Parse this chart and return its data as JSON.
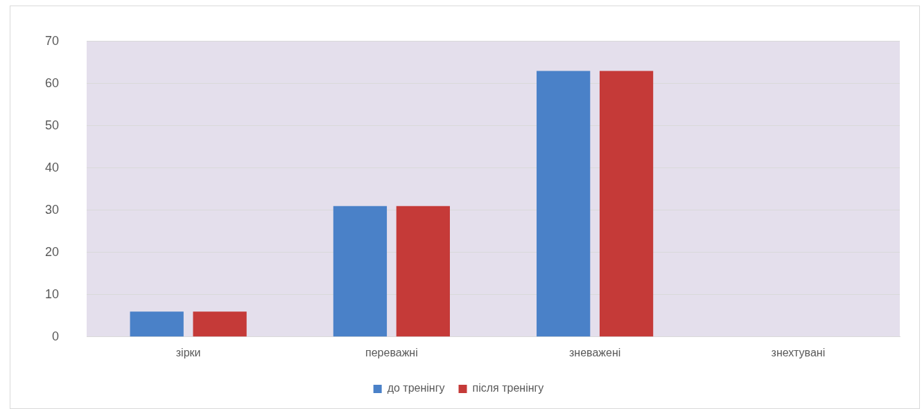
{
  "chart_data": {
    "type": "bar",
    "categories": [
      "зірки",
      "переважні",
      "зневажені",
      "знехтувані"
    ],
    "series": [
      {
        "name": "до тренінгу",
        "color": "#4a81c8",
        "values": [
          6,
          31,
          63,
          0
        ]
      },
      {
        "name": "після тренінгу",
        "color": "#c53a38",
        "values": [
          6,
          31,
          63,
          0
        ]
      }
    ],
    "ylim": [
      0,
      70
    ],
    "yticks": [
      0,
      10,
      20,
      30,
      40,
      50,
      60,
      70
    ],
    "grid": "y",
    "legend": "bottom"
  }
}
